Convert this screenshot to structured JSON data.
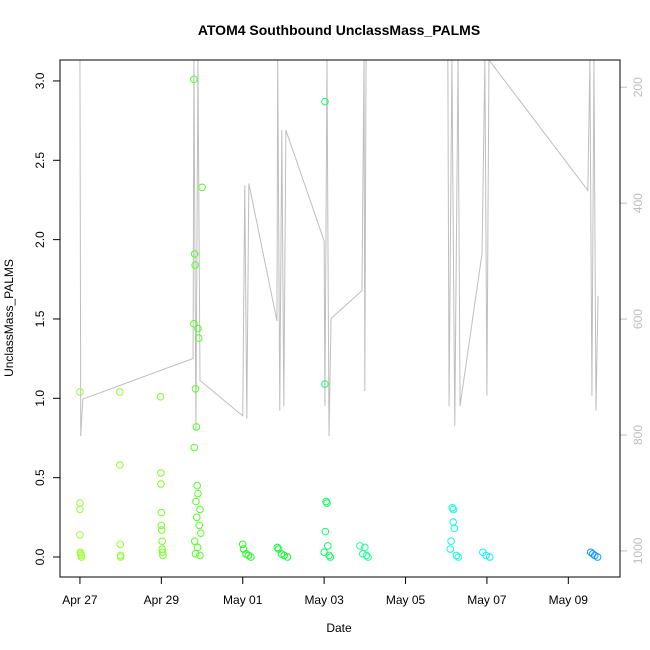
{
  "chart_data": {
    "type": "scatter",
    "title": "ATOM4 Southbound UnclassMass_PALMS",
    "xlabel": "Date",
    "ylabel": "UnclassMass_PALMS",
    "xlim": [
      -0.49,
      13.27
    ],
    "xticks": [
      {
        "value": 0,
        "label": "Apr 27"
      },
      {
        "value": 2,
        "label": "Apr 29"
      },
      {
        "value": 4,
        "label": "May 01"
      },
      {
        "value": 6,
        "label": "May 03"
      },
      {
        "value": 8,
        "label": "May 05"
      },
      {
        "value": 10,
        "label": "May 07"
      },
      {
        "value": 12,
        "label": "May 09"
      }
    ],
    "ylim": [
      -0.126,
      3.132
    ],
    "yticks": [
      {
        "value": 0,
        "label": "0.0"
      },
      {
        "value": 0.5,
        "label": "0.5"
      },
      {
        "value": 1,
        "label": "1.0"
      },
      {
        "value": 1.5,
        "label": "1.5"
      },
      {
        "value": 2,
        "label": "2.0"
      },
      {
        "value": 2.5,
        "label": "2.5"
      },
      {
        "value": 3,
        "label": "3.0"
      }
    ],
    "y2lim": [
      1045,
      153
    ],
    "y2ticks": [
      200,
      400,
      600,
      800,
      1000
    ],
    "y2color": "#bebebe",
    "series": [
      {
        "color": "#99ff33",
        "x": [
          0,
          0,
          0,
          0,
          0.01,
          0.02,
          0.03,
          0.04
        ],
        "values": [
          1.04,
          0.34,
          0.3,
          0.14,
          0.03,
          0.02,
          0.01,
          0
        ]
      },
      {
        "color": "#8cff33",
        "x": [
          0.98,
          0.98,
          0.99,
          1.0,
          1.0
        ],
        "values": [
          1.04,
          0.58,
          0.08,
          0.01,
          0
        ]
      },
      {
        "color": "#77ff22",
        "x": [
          1.98,
          1.99,
          1.99,
          2.0,
          2.0,
          2.01,
          2.02,
          2.02,
          2.03,
          2.04
        ],
        "values": [
          1.01,
          0.53,
          0.46,
          0.28,
          0.2,
          0.17,
          0.1,
          0.05,
          0.03,
          0.01
        ]
      },
      {
        "color": "#55ff22",
        "x": [
          2.8,
          2.82,
          2.83,
          2.8,
          2.9,
          2.92,
          2.84,
          2.86,
          2.81,
          2.88,
          2.9,
          2.85,
          2.95,
          2.87,
          2.93,
          2.97,
          2.82,
          2.89,
          2.84,
          2.95,
          3.0
        ],
        "values": [
          3.01,
          1.91,
          1.84,
          1.47,
          1.44,
          1.38,
          1.06,
          0.82,
          0.69,
          0.45,
          0.4,
          0.35,
          0.3,
          0.25,
          0.2,
          0.15,
          0.1,
          0.06,
          0.02,
          0.01,
          2.33
        ]
      },
      {
        "color": "#22ff22",
        "x": [
          4.0,
          4.02,
          4.08,
          4.14,
          4.2
        ],
        "values": [
          0.08,
          0.05,
          0.02,
          0.01,
          0
        ]
      },
      {
        "color": "#11ff33",
        "x": [
          4.85,
          4.88,
          4.95,
          5.02,
          5.1
        ],
        "values": [
          0.06,
          0.05,
          0.02,
          0.01,
          0
        ]
      },
      {
        "color": "#11ff66",
        "x": [
          6.02,
          6.02,
          6.05,
          6.07,
          6.03,
          6.09,
          6.0,
          6.12,
          6.15
        ],
        "values": [
          2.87,
          1.09,
          0.35,
          0.34,
          0.16,
          0.07,
          0.03,
          0.01,
          0
        ]
      },
      {
        "color": "#22ff99",
        "x": [
          6.88,
          7.0,
          6.95,
          7.04,
          7.08
        ],
        "values": [
          0.07,
          0.06,
          0.02,
          0.01,
          0
        ]
      },
      {
        "color": "#11ffdd",
        "x": [
          9.15,
          9.18,
          9.17,
          9.2,
          9.12,
          9.1,
          9.25,
          9.3
        ],
        "values": [
          0.31,
          0.3,
          0.22,
          0.18,
          0.1,
          0.05,
          0.01,
          0
        ]
      },
      {
        "color": "#11eeff",
        "x": [
          9.9,
          9.98,
          10.07
        ],
        "values": [
          0.03,
          0.01,
          0
        ]
      },
      {
        "color": "#1199ff",
        "x": [
          12.55,
          12.6,
          12.65,
          12.72
        ],
        "values": [
          0.03,
          0.02,
          0.01,
          0
        ]
      },
      {
        "type": "line",
        "axis": "y2",
        "color": "#bebebe",
        "x": [
          0.0,
          0.02,
          0.07,
          2.78,
          2.8,
          2.85,
          2.9,
          2.95,
          4.0,
          4.05,
          4.1,
          4.15,
          4.84,
          4.86,
          4.91,
          4.96,
          5.01,
          5.06,
          6.0,
          6.02,
          6.07,
          6.12,
          6.17,
          6.93,
          6.98,
          7.0,
          7.03,
          9.04,
          9.07,
          9.14,
          9.21,
          9.29,
          9.34,
          9.88,
          9.95,
          10.0,
          10.05,
          12.48,
          12.53,
          12.58,
          12.63,
          12.68,
          12.73
        ],
        "values": [
          153,
          802,
          738,
          668,
          153,
          793,
          153,
          706,
          767,
          369,
          772,
          366,
          603,
          153,
          758,
          274,
          750,
          274,
          465,
          750,
          153,
          802,
          599,
          551,
          153,
          724,
          153,
          153,
          750,
          153,
          784,
          153,
          750,
          487,
          153,
          732,
          153,
          378,
          153,
          732,
          153,
          758,
          560
        ]
      }
    ]
  }
}
